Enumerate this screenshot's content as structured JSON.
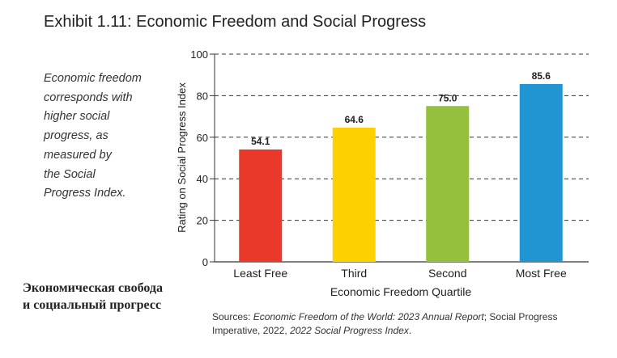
{
  "title": "Exhibit 1.11: Economic Freedom and Social Progress",
  "side_note": {
    "lines": [
      "Economic freedom",
      "corresponds with",
      "higher social",
      "progress, as",
      "measured by",
      "the Social",
      "Progress Index."
    ]
  },
  "ru_caption": {
    "lines": [
      "Экономическая свобода",
      "и социальный прогресс"
    ]
  },
  "sources": {
    "prefix": "Sources: ",
    "report": "Economic Freedom of the World: 2023 Annual Report",
    "middle": "; Social Progress Imperative, 2022, ",
    "index": "2022 Social Progress Index",
    "suffix": "."
  },
  "chart_data": {
    "type": "bar",
    "categories": [
      "Least Free",
      "Third",
      "Second",
      "Most Free"
    ],
    "values": [
      54.1,
      64.6,
      75.0,
      85.6
    ],
    "value_labels": [
      "54.1",
      "64.6",
      "75.0",
      "85.6"
    ],
    "colors": [
      "#e8392b",
      "#fdd100",
      "#94c03e",
      "#2195d2"
    ],
    "xlabel": "Economic Freedom Quartile",
    "ylabel": "Rating on Social Progress Index",
    "ylim": [
      0,
      100
    ],
    "yticks": [
      0,
      20,
      40,
      60,
      80,
      100
    ],
    "grid": "horizontal dashed"
  }
}
